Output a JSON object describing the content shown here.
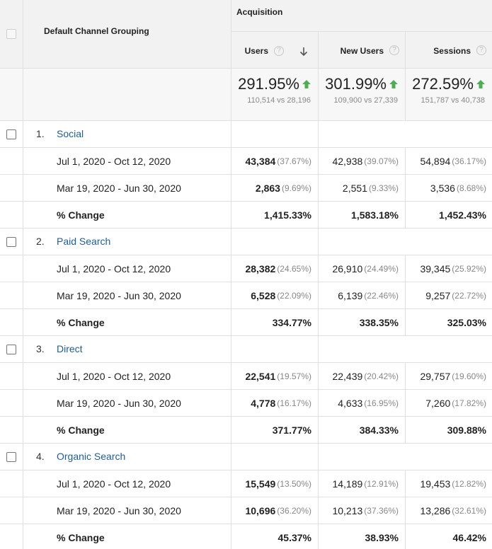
{
  "header": {
    "dimension_label": "Default Channel Grouping",
    "group_label": "Acquisition",
    "columns": [
      {
        "label": "Users",
        "sorted": "desc"
      },
      {
        "label": "New Users"
      },
      {
        "label": "Sessions"
      }
    ]
  },
  "summary": [
    {
      "change": "291.95%",
      "compare": "110,514 vs 28,196"
    },
    {
      "change": "301.99%",
      "compare": "109,900 vs 27,339"
    },
    {
      "change": "272.59%",
      "compare": "151,787 vs 40,738"
    }
  ],
  "colors": {
    "link": "#1a5e9e",
    "trend_up": "#4caf50",
    "muted": "#888888"
  },
  "groups": [
    {
      "index": "1.",
      "name": "Social",
      "rows": [
        {
          "label": "Jul 1, 2020 - Oct 12, 2020",
          "cells": [
            [
              "43,384",
              "(37.67%)"
            ],
            [
              "42,938",
              "(39.07%)"
            ],
            [
              "54,894",
              "(36.17%)"
            ]
          ]
        },
        {
          "label": "Mar 19, 2020 - Jun 30, 2020",
          "cells": [
            [
              "2,863",
              "(9.69%)"
            ],
            [
              "2,551",
              "(9.33%)"
            ],
            [
              "3,536",
              "(8.68%)"
            ]
          ]
        }
      ],
      "change": {
        "label": "% Change",
        "cells": [
          "1,415.33%",
          "1,583.18%",
          "1,452.43%"
        ]
      }
    },
    {
      "index": "2.",
      "name": "Paid Search",
      "rows": [
        {
          "label": "Jul 1, 2020 - Oct 12, 2020",
          "cells": [
            [
              "28,382",
              "(24.65%)"
            ],
            [
              "26,910",
              "(24.49%)"
            ],
            [
              "39,345",
              "(25.92%)"
            ]
          ]
        },
        {
          "label": "Mar 19, 2020 - Jun 30, 2020",
          "cells": [
            [
              "6,528",
              "(22.09%)"
            ],
            [
              "6,139",
              "(22.46%)"
            ],
            [
              "9,257",
              "(22.72%)"
            ]
          ]
        }
      ],
      "change": {
        "label": "% Change",
        "cells": [
          "334.77%",
          "338.35%",
          "325.03%"
        ]
      }
    },
    {
      "index": "3.",
      "name": "Direct",
      "rows": [
        {
          "label": "Jul 1, 2020 - Oct 12, 2020",
          "cells": [
            [
              "22,541",
              "(19.57%)"
            ],
            [
              "22,439",
              "(20.42%)"
            ],
            [
              "29,757",
              "(19.60%)"
            ]
          ]
        },
        {
          "label": "Mar 19, 2020 - Jun 30, 2020",
          "cells": [
            [
              "4,778",
              "(16.17%)"
            ],
            [
              "4,633",
              "(16.95%)"
            ],
            [
              "7,260",
              "(17.82%)"
            ]
          ]
        }
      ],
      "change": {
        "label": "% Change",
        "cells": [
          "371.77%",
          "384.33%",
          "309.88%"
        ]
      }
    },
    {
      "index": "4.",
      "name": "Organic Search",
      "rows": [
        {
          "label": "Jul 1, 2020 - Oct 12, 2020",
          "cells": [
            [
              "15,549",
              "(13.50%)"
            ],
            [
              "14,189",
              "(12.91%)"
            ],
            [
              "19,453",
              "(12.82%)"
            ]
          ]
        },
        {
          "label": "Mar 19, 2020 - Jun 30, 2020",
          "cells": [
            [
              "10,696",
              "(36.20%)"
            ],
            [
              "10,213",
              "(37.36%)"
            ],
            [
              "13,286",
              "(32.61%)"
            ]
          ]
        }
      ],
      "change": {
        "label": "% Change",
        "cells": [
          "45.37%",
          "38.93%",
          "46.42%"
        ]
      }
    }
  ]
}
